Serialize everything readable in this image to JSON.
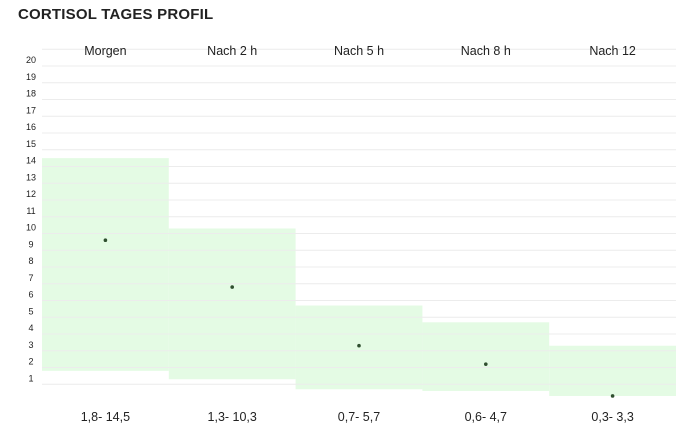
{
  "title": "CORTISOL TAGES PROFIL",
  "chart_data": {
    "type": "bar",
    "title": "CORTISOL TAGES PROFIL",
    "categories": [
      "Morgen",
      "Nach 2 h",
      "Nach 5 h",
      "Nach 8 h",
      "Nach 12"
    ],
    "range_labels": [
      "1,8- 14,5",
      "1,3- 10,3",
      "0,7- 5,7",
      "0,6- 4,7",
      "0,3- 3,3"
    ],
    "ranges": [
      [
        1.8,
        14.5
      ],
      [
        1.3,
        10.3
      ],
      [
        0.7,
        5.7
      ],
      [
        0.6,
        4.7
      ],
      [
        0.3,
        3.3
      ]
    ],
    "values": [
      9.6,
      6.8,
      3.3,
      2.2,
      0.3
    ],
    "y_ticks": [
      1,
      2,
      3,
      4,
      5,
      6,
      7,
      8,
      9,
      10,
      11,
      12,
      13,
      14,
      15,
      16,
      17,
      18,
      19,
      20
    ],
    "ylim": [
      0,
      20
    ],
    "grid": true,
    "colors": {
      "band": "#e4fbe4",
      "point": "#2f4f2f",
      "grid": "#ececec"
    }
  }
}
